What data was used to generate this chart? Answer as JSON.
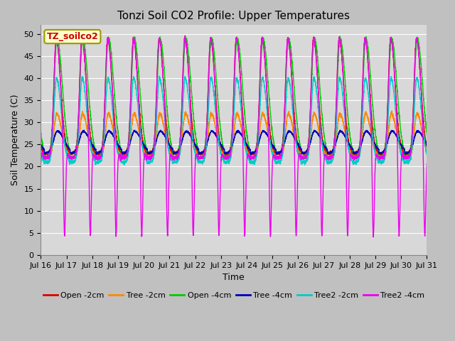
{
  "title": "Tonzi Soil CO2 Profile: Upper Temperatures",
  "ylabel": "Soil Temperature (C)",
  "xlabel": "Time",
  "label_box": "TZ_soilco2",
  "ylim": [
    0,
    52
  ],
  "yticks": [
    0,
    5,
    10,
    15,
    20,
    25,
    30,
    35,
    40,
    45,
    50
  ],
  "xtick_labels": [
    "Jul 16",
    "Jul 17",
    "Jul 18",
    "Jul 19",
    "Jul 20",
    "Jul 21",
    "Jul 22",
    "Jul 23",
    "Jul 24",
    "Jul 25",
    "Jul 26",
    "Jul 27",
    "Jul 28",
    "Jul 29",
    "Jul 30",
    "Jul 31"
  ],
  "series": [
    {
      "label": "Open -2cm",
      "color": "#dd0000"
    },
    {
      "label": "Tree -2cm",
      "color": "#ff8800"
    },
    {
      "label": "Open -4cm",
      "color": "#00cc00"
    },
    {
      "label": "Tree -4cm",
      "color": "#0000bb"
    },
    {
      "label": "Tree2 -2cm",
      "color": "#00cccc"
    },
    {
      "label": "Tree2 -4cm",
      "color": "#ee00ee"
    }
  ],
  "n_days": 15,
  "points_per_day": 288,
  "background_color": "#d8d8d8",
  "grid_color": "#ffffff",
  "title_fontsize": 11,
  "label_fontsize": 9,
  "tick_fontsize": 8
}
